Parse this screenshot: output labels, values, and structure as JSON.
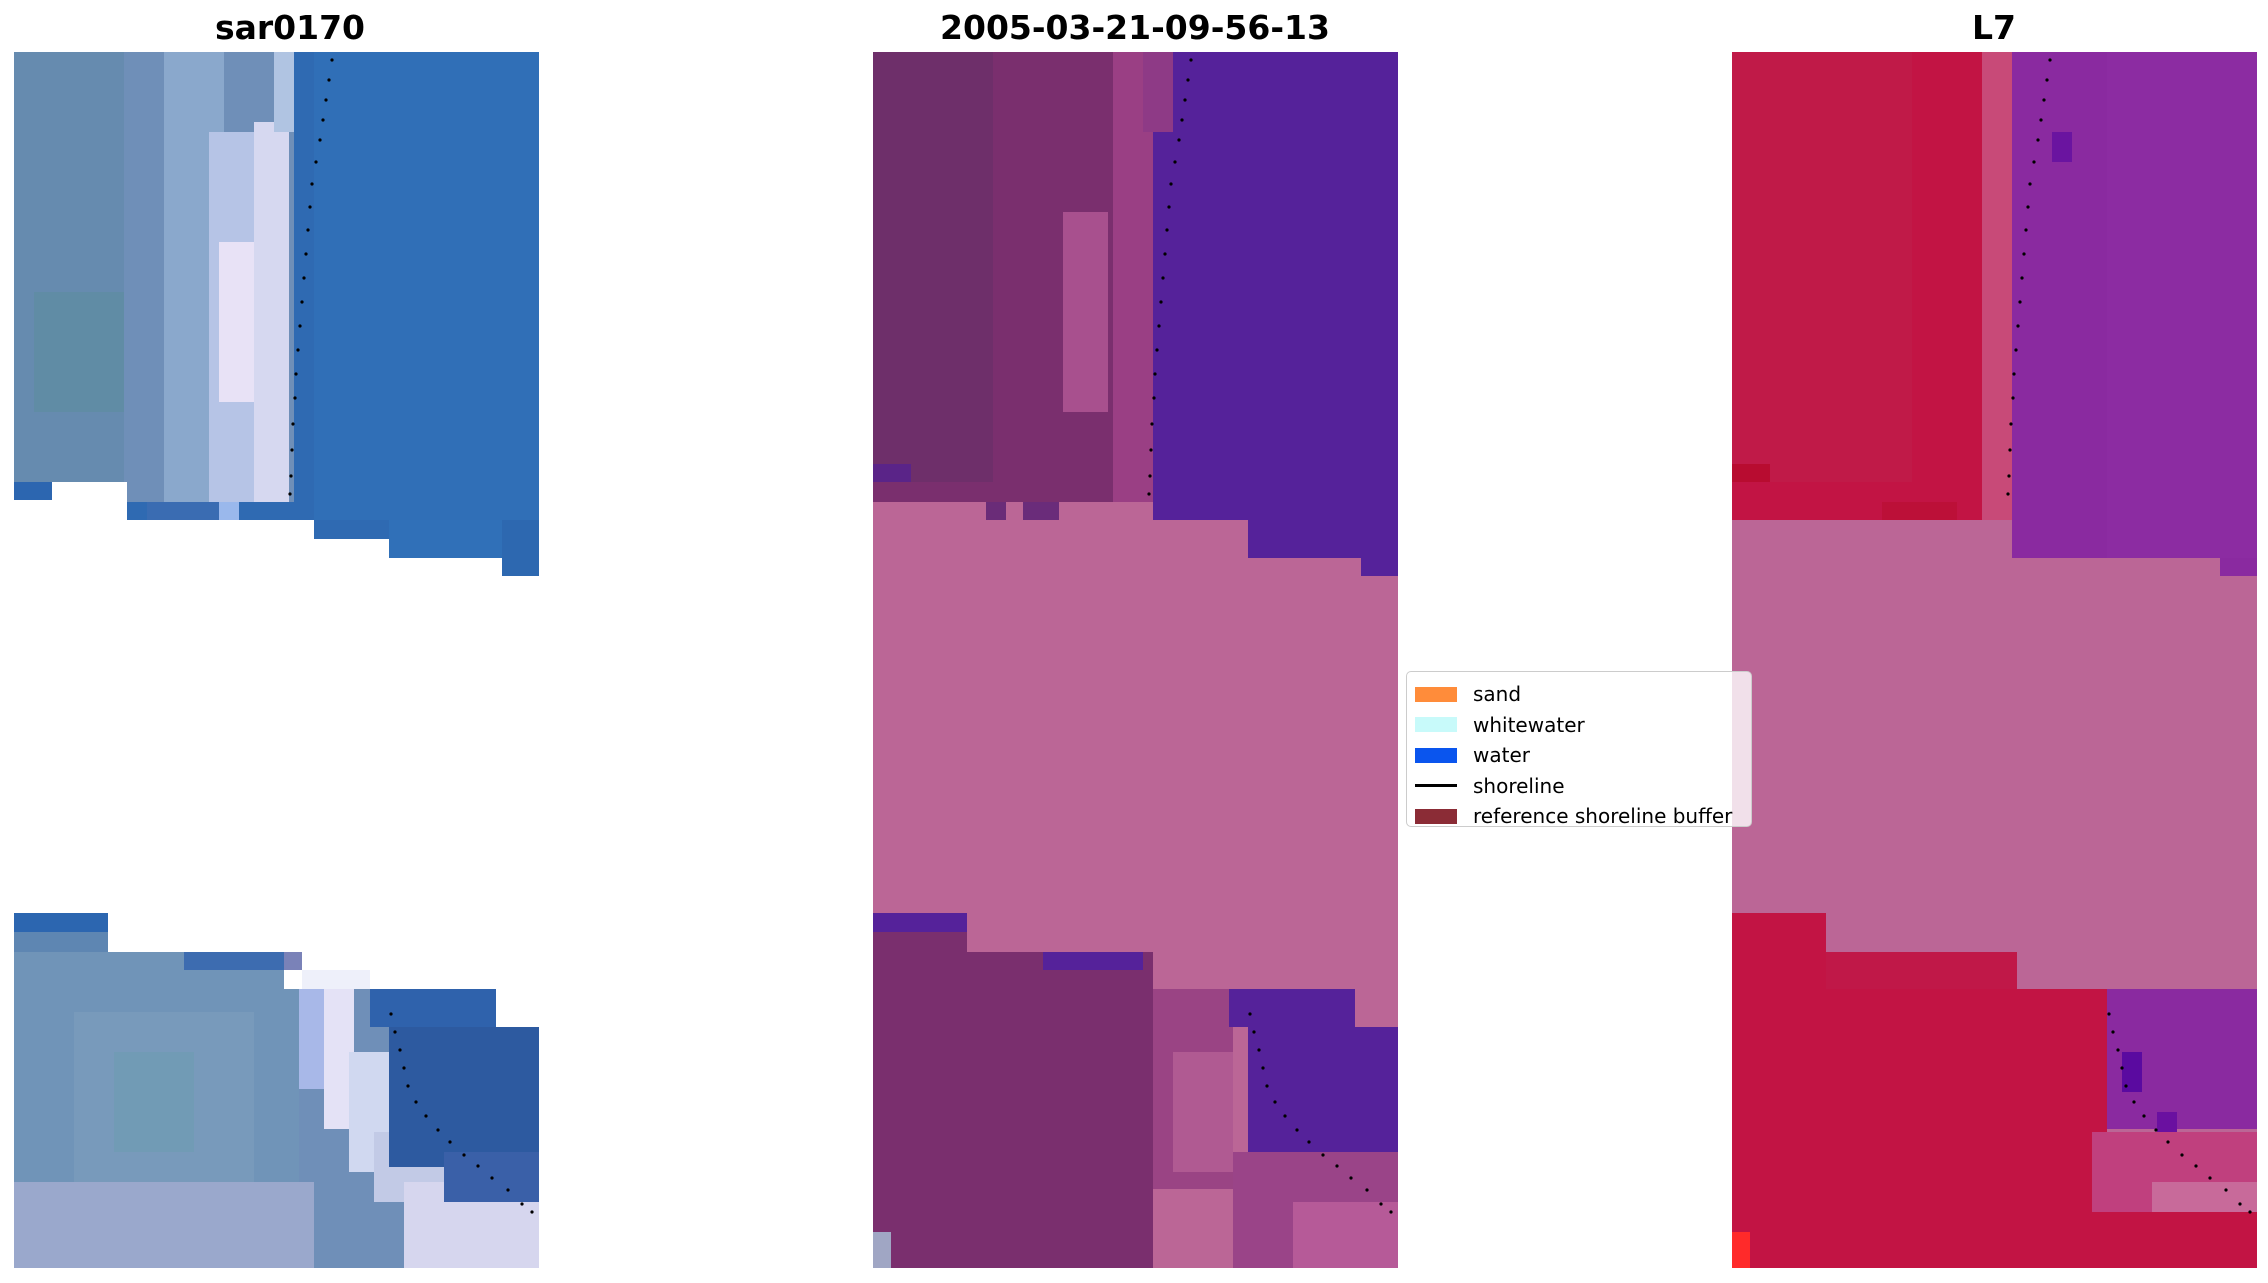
{
  "panels": [
    {
      "title": "sar0170"
    },
    {
      "title": "2005-03-21-09-56-13"
    },
    {
      "title": "L7"
    }
  ],
  "legend": {
    "items": [
      {
        "label": "sand",
        "color": "#ff8c3a",
        "kind": "patch"
      },
      {
        "label": "whitewater",
        "color": "#c8fafa",
        "kind": "patch"
      },
      {
        "label": "water",
        "color": "#0a55ee",
        "kind": "patch"
      },
      {
        "label": "shoreline",
        "color": "#000000",
        "kind": "line"
      },
      {
        "label": "reference shoreline buffer",
        "color": "#8b2c36",
        "kind": "patch"
      }
    ]
  },
  "colors": {
    "rgb_water": "#2f6fb6",
    "rgb_land": "#6d8eb8",
    "rgb_white": "#eae4f5",
    "class_water": "#55229a",
    "class_land": "#7a2f6e",
    "class_nodata": "#bb6696",
    "l7_land": "#c21444",
    "l7_water": "#8a2aa0",
    "l7_nodata": "#bb6696"
  }
}
